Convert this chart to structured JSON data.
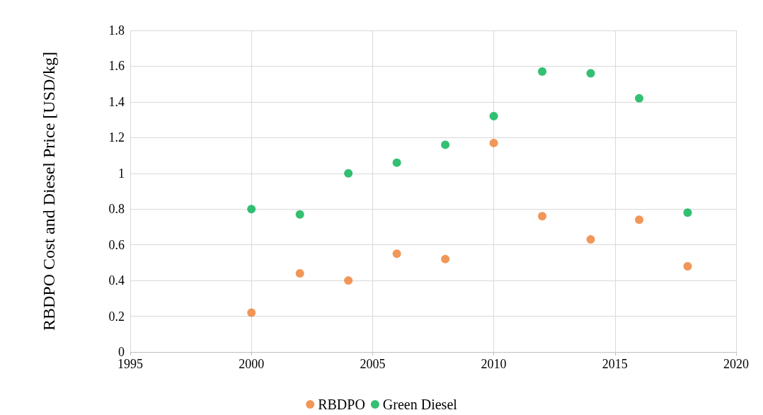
{
  "chart_data": {
    "type": "scatter",
    "ylabel": "RBDPO Cost and Diesel Price [USD/kg]",
    "x": [
      2000,
      2002,
      2004,
      2006,
      2008,
      2010,
      2012,
      2014,
      2016,
      2018
    ],
    "series": [
      {
        "name": "RBDPO",
        "color": "#ed7d31",
        "values": [
          0.22,
          0.44,
          0.4,
          0.55,
          0.52,
          1.17,
          0.76,
          0.63,
          0.74,
          0.48
        ]
      },
      {
        "name": "Green Diesel",
        "color": "#00b050",
        "values": [
          0.8,
          0.77,
          1.0,
          1.06,
          1.16,
          1.32,
          1.57,
          1.56,
          1.42,
          0.78
        ]
      }
    ],
    "xlim": [
      1995,
      2020
    ],
    "xticks": [
      1995,
      2000,
      2005,
      2010,
      2015,
      2020
    ],
    "ylim": [
      0,
      1.8
    ],
    "yticks": [
      0,
      0.2,
      0.4,
      0.6,
      0.8,
      1,
      1.2,
      1.4,
      1.6,
      1.8
    ],
    "grid": true,
    "legend": "bottom",
    "marker": "circle"
  }
}
